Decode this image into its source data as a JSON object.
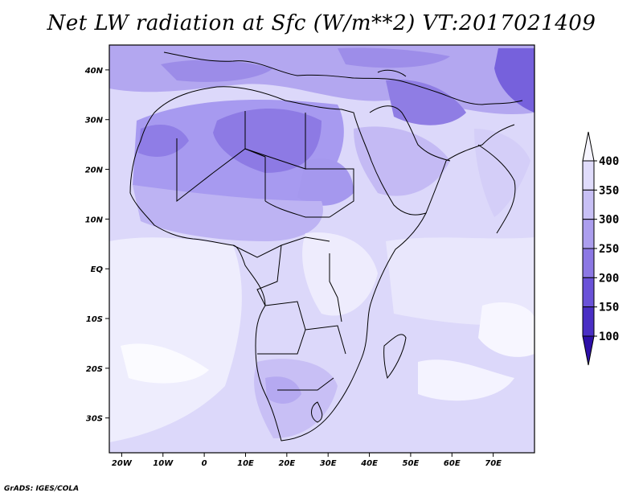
{
  "title": "Net LW radiation at Sfc (W/m**2) VT:2017021409",
  "credit": "GrADS: IGES/COLA",
  "map": {
    "lon_range": [
      -23,
      80
    ],
    "lat_range": [
      -37,
      45
    ],
    "lon_ticks": [
      {
        "lon": -20,
        "label": "20W"
      },
      {
        "lon": -10,
        "label": "10W"
      },
      {
        "lon": 0,
        "label": "0"
      },
      {
        "lon": 10,
        "label": "10E"
      },
      {
        "lon": 20,
        "label": "20E"
      },
      {
        "lon": 30,
        "label": "30E"
      },
      {
        "lon": 40,
        "label": "40E"
      },
      {
        "lon": 50,
        "label": "50E"
      },
      {
        "lon": 60,
        "label": "60E"
      },
      {
        "lon": 70,
        "label": "70E"
      }
    ],
    "lat_ticks": [
      {
        "lat": 40,
        "label": "40N"
      },
      {
        "lat": 30,
        "label": "30N"
      },
      {
        "lat": 20,
        "label": "20N"
      },
      {
        "lat": 10,
        "label": "10N"
      },
      {
        "lat": 0,
        "label": "EQ"
      },
      {
        "lat": -10,
        "label": "10S"
      },
      {
        "lat": -20,
        "label": "20S"
      },
      {
        "lat": -30,
        "label": "30S"
      }
    ]
  },
  "colorbar": {
    "labels": [
      "100",
      "150",
      "200",
      "250",
      "300",
      "350",
      "400"
    ],
    "colors": [
      "#2d0fa8",
      "#4a2fc4",
      "#6a52d8",
      "#8c78e4",
      "#ac9eee",
      "#c8c0f5",
      "#e0dcfb",
      "#f6f5ff"
    ]
  }
}
